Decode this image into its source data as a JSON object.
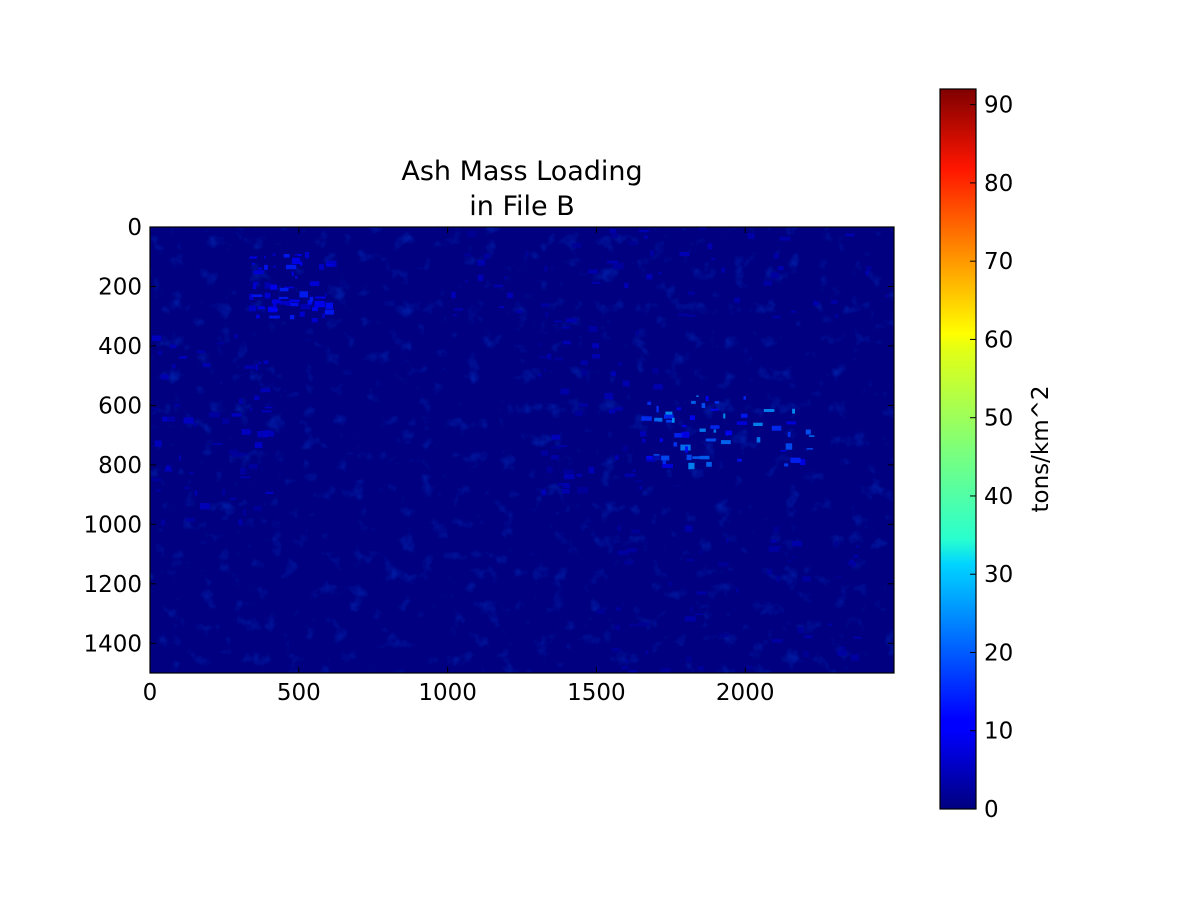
{
  "chart_data": [
    {
      "type": "heatmap",
      "title_lines": [
        "Ash Mass Loading",
        "in File B"
      ],
      "xlabel": "",
      "ylabel": "",
      "xlim": [
        0,
        2500
      ],
      "ylim": [
        1500,
        0
      ],
      "x_ticks": [
        "0",
        "500",
        "1000",
        "1500",
        "2000"
      ],
      "y_ticks": [
        "0",
        "200",
        "400",
        "600",
        "800",
        "1000",
        "1200",
        "1400"
      ],
      "colormap": "jet",
      "background_value": 0,
      "highlight_regions": [
        {
          "x": [
            1650,
            2250
          ],
          "y": [
            560,
            800
          ],
          "value": 22
        },
        {
          "x": [
            330,
            600
          ],
          "y": [
            80,
            330
          ],
          "value": 12
        },
        {
          "x": [
            0,
            400
          ],
          "y": [
            330,
            1000
          ],
          "value": 6
        },
        {
          "x": [
            1300,
            1700
          ],
          "y": [
            300,
            900
          ],
          "value": 5
        },
        {
          "x": [
            1000,
            2500
          ],
          "y": [
            0,
            300
          ],
          "value": 5
        },
        {
          "x": [
            1500,
            2400
          ],
          "y": [
            1000,
            1500
          ],
          "value": 4
        }
      ],
      "colorbar": {
        "label": "tons/km^2",
        "range": [
          0,
          92
        ],
        "ticks": [
          "0",
          "10",
          "20",
          "30",
          "40",
          "50",
          "60",
          "70",
          "80",
          "90"
        ]
      }
    }
  ]
}
